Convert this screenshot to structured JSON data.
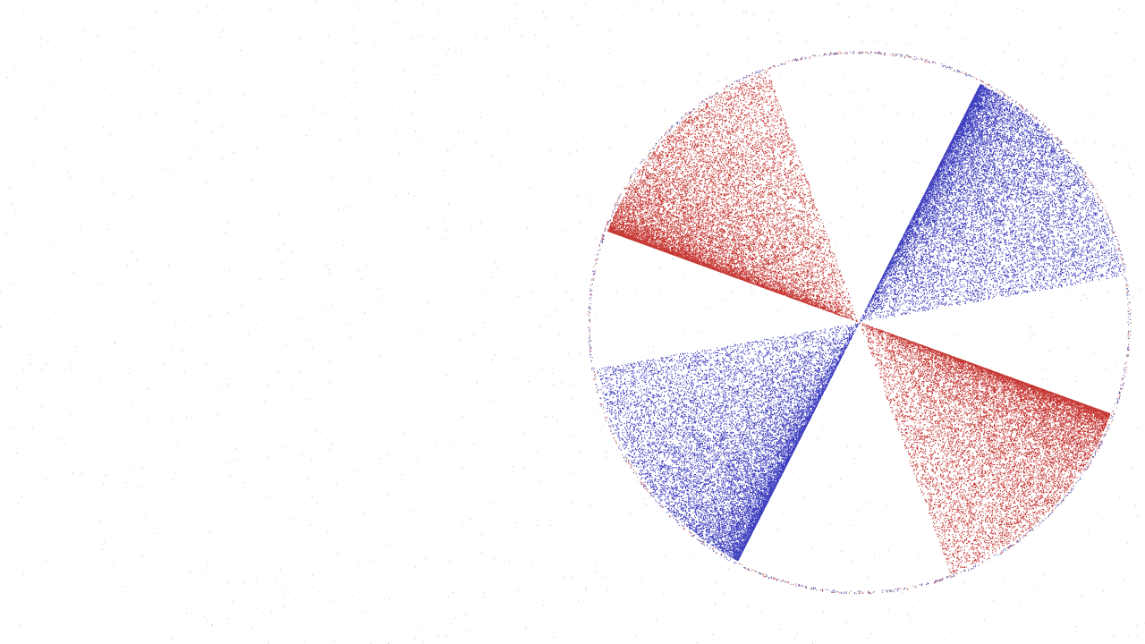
{
  "scene": {
    "background_color": "#ffffff",
    "noise_color": "#9a9ab0",
    "circle": {
      "outline_color": "#3a3aa8",
      "outline_color_alt": "#b02a2a"
    },
    "wedges": [
      {
        "color_name": "red",
        "color": "#c0221e",
        "angle_start_deg": 200,
        "angle_end_deg": 250,
        "dense_edge": "start"
      },
      {
        "color_name": "blue",
        "color": "#2a2ab8",
        "angle_start_deg": 297,
        "angle_end_deg": 350,
        "dense_edge": "start"
      },
      {
        "color_name": "red",
        "color": "#c0221e",
        "angle_start_deg": 20,
        "angle_end_deg": 70,
        "dense_edge": "start"
      },
      {
        "color_name": "blue",
        "color": "#2a2ab8",
        "angle_start_deg": 117,
        "angle_end_deg": 170,
        "dense_edge": "start"
      }
    ]
  }
}
